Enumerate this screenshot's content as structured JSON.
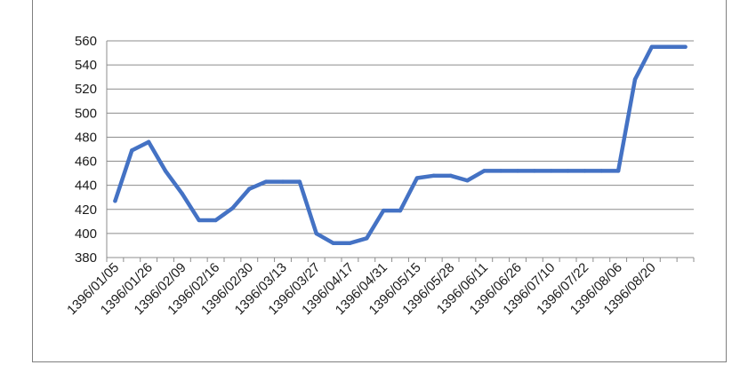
{
  "chart_data": {
    "type": "line",
    "title": "",
    "xlabel": "",
    "ylabel": "",
    "ylim": [
      380,
      560
    ],
    "y_ticks": [
      380,
      400,
      420,
      440,
      460,
      480,
      500,
      520,
      540,
      560
    ],
    "grid": "horizontal",
    "legend": "none",
    "series_color": "#4472C4",
    "x_tick_labels": [
      "1396/01/05",
      "1396/01/26",
      "1396/02/09",
      "1396/02/16",
      "1396/02/30",
      "1396/03/13",
      "1396/03/27",
      "1396/04/17",
      "1396/04/31",
      "1396/05/15",
      "1396/05/28",
      "1396/06/11",
      "1396/06/26",
      "1396/07/10",
      "1396/07/22",
      "1396/08/06",
      "1396/08/20"
    ],
    "series": [
      {
        "values": [
          427,
          469,
          476,
          452,
          433,
          411,
          411,
          421,
          437,
          443,
          443,
          443,
          400,
          392,
          392,
          396,
          419,
          419,
          446,
          448,
          448,
          444,
          452,
          452,
          452,
          452,
          452,
          452,
          452,
          452,
          452,
          528,
          555,
          555,
          555
        ]
      }
    ]
  }
}
